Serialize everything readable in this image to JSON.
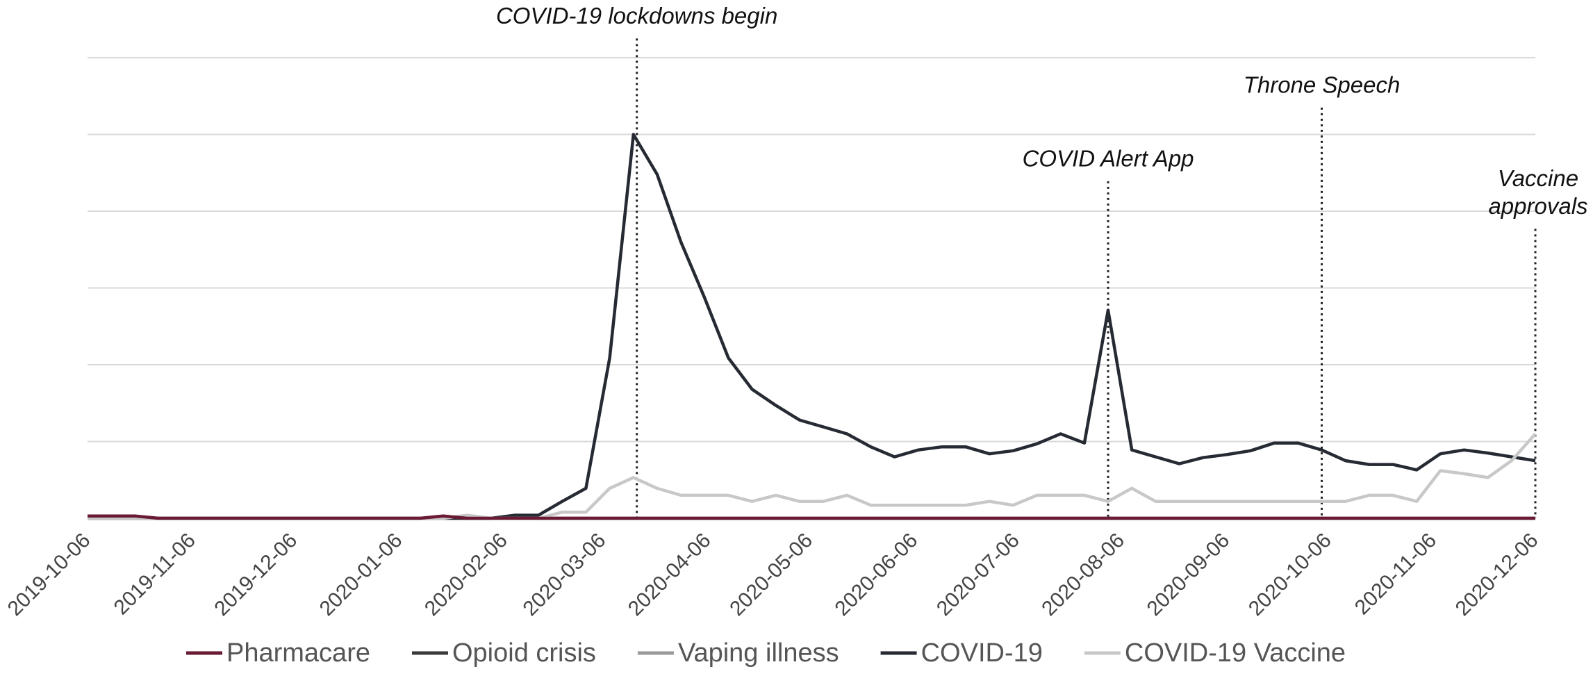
{
  "chart_data": {
    "type": "line",
    "x": [
      "2019-10-06",
      "2019-10-13",
      "2019-10-20",
      "2019-10-27",
      "2019-11-03",
      "2019-11-10",
      "2019-11-17",
      "2019-11-24",
      "2019-12-01",
      "2019-12-08",
      "2019-12-15",
      "2019-12-22",
      "2019-12-29",
      "2020-01-05",
      "2020-01-12",
      "2020-01-19",
      "2020-01-26",
      "2020-02-02",
      "2020-02-09",
      "2020-02-16",
      "2020-02-23",
      "2020-03-01",
      "2020-03-08",
      "2020-03-15",
      "2020-03-22",
      "2020-03-29",
      "2020-04-05",
      "2020-04-12",
      "2020-04-19",
      "2020-04-26",
      "2020-05-03",
      "2020-05-10",
      "2020-05-17",
      "2020-05-24",
      "2020-05-31",
      "2020-06-07",
      "2020-06-14",
      "2020-06-21",
      "2020-06-28",
      "2020-07-05",
      "2020-07-12",
      "2020-07-19",
      "2020-07-26",
      "2020-08-02",
      "2020-08-09",
      "2020-08-16",
      "2020-08-23",
      "2020-08-30",
      "2020-09-06",
      "2020-09-13",
      "2020-09-20",
      "2020-09-27",
      "2020-10-04",
      "2020-10-11",
      "2020-10-18",
      "2020-10-25",
      "2020-11-01",
      "2020-11-08",
      "2020-11-15",
      "2020-11-22",
      "2020-11-29",
      "2020-12-06"
    ],
    "series": [
      {
        "name": "Pharmacare",
        "color": "#6b1a33",
        "values": [
          0.03,
          0.03,
          0.03,
          0,
          0,
          0,
          0,
          0,
          0,
          0,
          0,
          0,
          0,
          0,
          0,
          0.03,
          0,
          0,
          0,
          0,
          0,
          0,
          0,
          0,
          0,
          0,
          0,
          0,
          0,
          0,
          0,
          0,
          0,
          0,
          0,
          0,
          0,
          0,
          0,
          0,
          0,
          0,
          0,
          0,
          0,
          0,
          0,
          0,
          0,
          0,
          0,
          0,
          0,
          0,
          0,
          0,
          0,
          0,
          0,
          0,
          0,
          0
        ]
      },
      {
        "name": "Opioid crisis",
        "color": "#3a3a3a",
        "values": [
          0,
          0,
          0,
          0,
          0,
          0,
          0,
          0,
          0,
          0,
          0,
          0,
          0,
          0,
          0,
          0,
          0,
          0,
          0,
          0,
          0,
          0,
          0,
          0,
          0,
          0,
          0,
          0,
          0,
          0,
          0,
          0,
          0,
          0,
          0,
          0,
          0,
          0,
          0,
          0,
          0,
          0,
          0,
          0,
          0,
          0,
          0,
          0,
          0,
          0,
          0,
          0,
          0,
          0,
          0,
          0,
          0,
          0,
          0,
          0,
          0,
          0
        ]
      },
      {
        "name": "Vaping illness",
        "color": "#9a9a9a",
        "values": [
          0,
          0,
          0,
          0,
          0,
          0,
          0,
          0,
          0,
          0,
          0,
          0,
          0,
          0,
          0,
          0,
          0,
          0,
          0,
          0,
          0,
          0,
          0,
          0,
          0,
          0,
          0,
          0,
          0,
          0,
          0,
          0,
          0,
          0,
          0,
          0,
          0,
          0,
          0,
          0,
          0,
          0,
          0,
          0,
          0,
          0,
          0,
          0,
          0,
          0,
          0,
          0,
          0,
          0,
          0,
          0,
          0,
          0,
          0,
          0,
          0,
          0
        ]
      },
      {
        "name": "COVID-19",
        "color": "#252a33",
        "values": [
          0,
          0,
          0,
          0,
          0,
          0,
          0,
          0,
          0,
          0,
          0,
          0,
          0,
          0,
          0,
          0,
          0,
          0,
          0.04,
          0.04,
          0.22,
          0.39,
          2.09,
          5.0,
          4.48,
          3.6,
          2.87,
          2.09,
          1.68,
          1.47,
          1.28,
          1.19,
          1.1,
          0.93,
          0.8,
          0.89,
          0.93,
          0.93,
          0.84,
          0.88,
          0.97,
          1.1,
          0.98,
          2.71,
          0.89,
          0.8,
          0.71,
          0.79,
          0.83,
          0.88,
          0.98,
          0.98,
          0.89,
          0.75,
          0.7,
          0.7,
          0.63,
          0.84,
          0.89,
          0.85,
          0.8,
          0.75
        ]
      },
      {
        "name": "COVID-19 Vaccine",
        "color": "#c8c8c8",
        "values": [
          0,
          0,
          0,
          0,
          0,
          0,
          0,
          0,
          0,
          0,
          0,
          0,
          0,
          0,
          0,
          0,
          0.04,
          0,
          0,
          0,
          0.08,
          0.08,
          0.39,
          0.53,
          0.39,
          0.3,
          0.3,
          0.3,
          0.22,
          0.3,
          0.22,
          0.22,
          0.3,
          0.17,
          0.17,
          0.17,
          0.17,
          0.17,
          0.22,
          0.17,
          0.3,
          0.3,
          0.3,
          0.22,
          0.39,
          0.22,
          0.22,
          0.22,
          0.22,
          0.22,
          0.22,
          0.22,
          0.22,
          0.22,
          0.3,
          0.3,
          0.22,
          0.62,
          0.58,
          0.53,
          0.75,
          1.1
        ]
      }
    ],
    "xlim": [
      "2019-10-06",
      "2020-12-06"
    ],
    "xticks": [
      "2019-10-06",
      "2019-11-06",
      "2019-12-06",
      "2020-01-06",
      "2020-02-06",
      "2020-03-06",
      "2020-04-06",
      "2020-05-06",
      "2020-06-06",
      "2020-07-06",
      "2020-08-06",
      "2020-09-06",
      "2020-10-06",
      "2020-11-06",
      "2020-12-06"
    ],
    "ylim": [
      0,
      6
    ],
    "yticks": [
      0,
      1,
      2,
      3,
      4,
      5,
      6
    ],
    "ytick_labels": false,
    "grid": true,
    "legend": "bottom",
    "annotations": [
      {
        "text": [
          "COVID-19 lockdowns begin"
        ],
        "x": "2020-03-16",
        "y": 6.25
      },
      {
        "text": [
          "COVID Alert App"
        ],
        "x": "2020-08-02",
        "y": 4.39
      },
      {
        "text": [
          "Throne Speech"
        ],
        "x": "2020-10-04",
        "y": 5.35
      },
      {
        "text": [
          "Vaccine",
          "approvals"
        ],
        "x": "2020-12-06",
        "y": 3.77
      }
    ]
  }
}
